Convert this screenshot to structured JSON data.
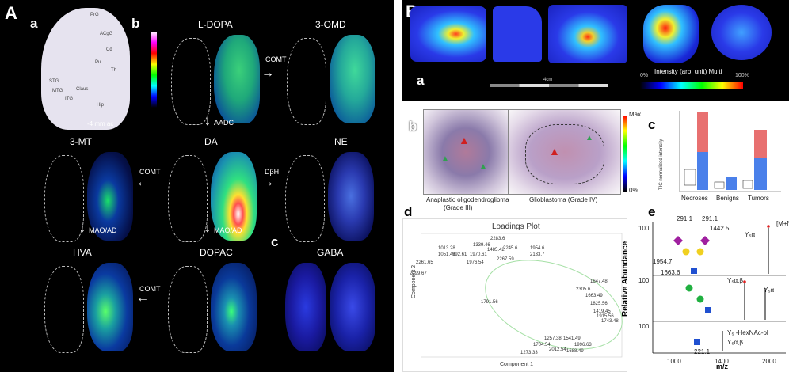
{
  "panelA": {
    "letter": "A",
    "sub_a": "a",
    "sub_b": "b",
    "sub_c": "c",
    "section_labels": [
      "-4 mm ac"
    ],
    "atlas_labels": [
      "PrG",
      "ACgG",
      "Cd",
      "Pu",
      "Th",
      "ITG",
      "Hip",
      "STG",
      "MTG",
      "Claus"
    ],
    "compounds": {
      "ldopa": "L-DOPA",
      "omd": "3-OMD",
      "da": "DA",
      "mt": "3-MT",
      "ne": "NE",
      "hva": "HVA",
      "dopac": "DOPAC",
      "gaba": "GABA"
    },
    "enzymes": {
      "comt1": "COMT",
      "aadc": "AADC",
      "comt2": "COMT",
      "dbh": "DβH",
      "maoad1": "MAO/AD",
      "maoad2": "MAO/AD",
      "comt3": "COMT"
    }
  },
  "panelB": {
    "letter": "B",
    "sub_a": "a",
    "sub_b": "b",
    "sub_c": "c",
    "sub_d": "d",
    "sub_e": "e",
    "scale_label": "4cm",
    "intensity_label": "Intensity (arb. unit) Multi",
    "intensity_min": "0%",
    "intensity_max": "100%",
    "colorbar_max": "Max",
    "colorbar_min": "0%",
    "tumor1": "Anaplastic oligodendroglioma",
    "tumor1_grade": "(Grade III)",
    "tumor2": "Glioblastoma (Grade IV)",
    "boxplot": {
      "ylabel": "TIC normalized intensity",
      "categories": [
        "Necroses",
        "Benigns",
        "Tumors"
      ]
    },
    "loadings": {
      "title": "Loadings Plot",
      "xlabel": "Component 1",
      "ylabel": "Component 2",
      "points": [
        "1013.28",
        "1339.46",
        "2283.6",
        "1051.48",
        "992.61",
        "1970.61",
        "1485.42",
        "2245.6",
        "1954.6",
        "2261.65",
        "1976.54",
        "2267.59",
        "2133.7",
        "2299.67",
        "1647.48",
        "2305.6",
        "1663.49",
        "1825.56",
        "1419.45",
        "1915.56",
        "1743.48",
        "1791.56",
        "1257.38",
        "1541.49",
        "1704.54",
        "1996.63",
        "2012.54",
        "1688.49",
        "1273.33"
      ]
    },
    "spectrum": {
      "ylabel": "Relative Abundance",
      "xlabel": "m/z",
      "xticks": [
        "1000",
        "1400",
        "2000"
      ],
      "yticks": [
        "100",
        "100",
        "100"
      ],
      "peaks": [
        "291.1",
        "291.1",
        "1442.5",
        "1954.7",
        "1663.6",
        "221.1"
      ],
      "annotations": [
        "[M+Na]⁺",
        "Y₅α",
        "Y₅α,β",
        "Y₅α",
        "Y₅ -HexNAc-ol",
        "Y₅α,β"
      ]
    }
  }
}
